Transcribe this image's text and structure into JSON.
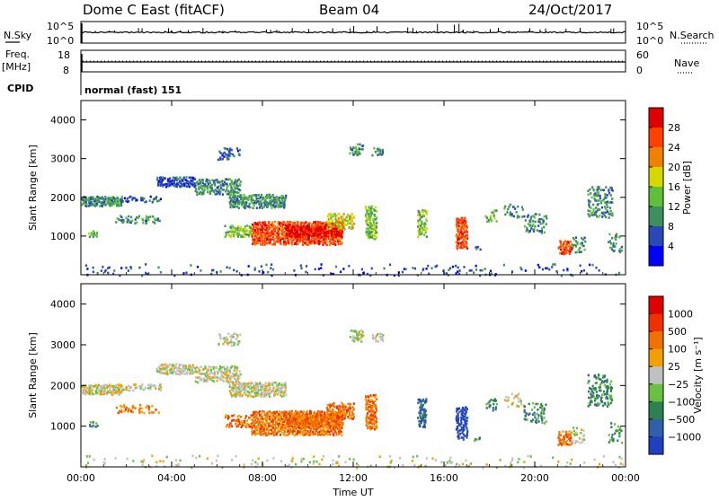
{
  "header": {
    "station": "Dome C East (fitACF)",
    "beam": "Beam 04",
    "date": "24/Oct/2017"
  },
  "aux": {
    "nsky_label": "N.Sky",
    "nsearch_label": "N.Search",
    "freq_label": "Freq.",
    "freq_unit": "[MHz]",
    "nave_label": "Nave",
    "cpid_label": "CPID",
    "cpid_value": "normal (fast) 151",
    "noise_ticks_left": [
      "10^5",
      "10^0"
    ],
    "noise_ticks_right": [
      "10^5",
      "10^0"
    ],
    "freq_ticks": [
      "18",
      "8"
    ],
    "nave_ticks": [
      "60",
      "0"
    ]
  },
  "chart_data": [
    {
      "type": "heatmap",
      "name": "power",
      "ylabel": "Slant Range [km]",
      "ylim": [
        0,
        4500
      ],
      "yticks": [
        1000,
        2000,
        3000,
        4000
      ],
      "xlim": [
        0,
        24
      ],
      "xticks": [
        "00:00",
        "04:00",
        "08:00",
        "12:00",
        "16:00",
        "20:00",
        "00:00"
      ],
      "colorbar": {
        "label": "Power [dB]",
        "ticks": [
          4,
          8,
          12,
          16,
          20,
          24,
          28
        ],
        "colors": [
          "#0000ff",
          "#2a48b8",
          "#3e8f5e",
          "#5fbf3a",
          "#d6d600",
          "#f08000",
          "#ff4000",
          "#e00000"
        ]
      }
    },
    {
      "type": "heatmap",
      "name": "velocity",
      "ylabel": "Slant Range [km]",
      "ylim": [
        0,
        4500
      ],
      "yticks": [
        1000,
        2000,
        3000,
        4000
      ],
      "xlim": [
        0,
        24
      ],
      "xticks": [
        "00:00",
        "04:00",
        "08:00",
        "12:00",
        "16:00",
        "20:00",
        "00:00"
      ],
      "xlabel": "Time UT",
      "colorbar": {
        "label": "Velocity [m s⁻¹]",
        "ticks": [
          "1000",
          "500",
          "100",
          "25",
          "−25",
          "−100",
          "−500",
          "−1000"
        ],
        "colors": [
          "#2040c0",
          "#3060a8",
          "#2e8050",
          "#6ac040",
          "#c0c0c0",
          "#f0a000",
          "#f07000",
          "#f03000",
          "#e00000"
        ]
      }
    }
  ]
}
